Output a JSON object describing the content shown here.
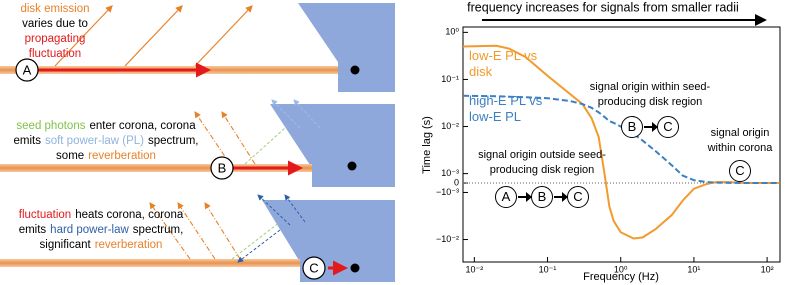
{
  "diagram": {
    "panels": [
      {
        "label": "A",
        "lines": [
          [
            {
              "t": "disk emission",
              "color": "#e8822a"
            }
          ],
          [
            {
              "t": "varies due to",
              "color": "#000000"
            }
          ],
          [
            {
              "t": "propagating",
              "color": "#e3191b"
            }
          ],
          [
            {
              "t": "fluctuation",
              "color": "#e3191b"
            }
          ]
        ]
      },
      {
        "label": "B",
        "lines": [
          [
            {
              "t": "seed photons",
              "color": "#7fc247"
            },
            {
              "t": "enter corona, corona",
              "color": "#000000"
            }
          ],
          [
            {
              "t": "emits",
              "color": "#000000"
            },
            {
              "t": "soft power-law (PL)",
              "color": "#8fb3e0"
            },
            {
              "t": "spectrum,",
              "color": "#000000"
            }
          ],
          [
            {
              "t": "some",
              "color": "#000000"
            },
            {
              "t": "reverberation",
              "color": "#e8822a"
            }
          ]
        ]
      },
      {
        "label": "C",
        "lines": [
          [
            {
              "t": "fluctuation",
              "color": "#e3191b"
            },
            {
              "t": "heats corona, corona",
              "color": "#000000"
            }
          ],
          [
            {
              "t": "emits",
              "color": "#000000"
            },
            {
              "t": "hard power-law",
              "color": "#2f5fa8"
            },
            {
              "t": "spectrum,",
              "color": "#000000"
            }
          ],
          [
            {
              "t": "significant",
              "color": "#000000"
            },
            {
              "t": "reverberation",
              "color": "#e8822a"
            }
          ]
        ]
      }
    ]
  },
  "chart_data": {
    "type": "line",
    "title": "frequency increases for signals from smaller radii",
    "xlabel": "Frequency (Hz)",
    "ylabel": "Time lag (s)",
    "xscale": "log",
    "yscale": "symlog",
    "linthresh": 0.001,
    "linscale": 0.2,
    "xlim": [
      0.007,
      150
    ],
    "ylim": [
      -0.03,
      1.3
    ],
    "xticks": [
      {
        "value": 0.01,
        "label": "10⁻²"
      },
      {
        "value": 0.1,
        "label": "10⁻¹"
      },
      {
        "value": 1,
        "label": "10⁰"
      },
      {
        "value": 10,
        "label": "10¹"
      },
      {
        "value": 100,
        "label": "10²"
      }
    ],
    "yticks": [
      {
        "value": 1,
        "label": "10⁰"
      },
      {
        "value": 0.1,
        "label": "10⁻¹"
      },
      {
        "value": 0.01,
        "label": "10⁻²"
      },
      {
        "value": 0.001,
        "label": "10⁻³"
      },
      0,
      {
        "value": -0.001,
        "label": "−10⁻³"
      },
      {
        "value": -0.01,
        "label": "−10⁻²"
      }
    ],
    "zero_line": true,
    "x": [
      0.007,
      0.02,
      0.03,
      0.05,
      0.1,
      0.2,
      0.3,
      0.4,
      0.5,
      0.6,
      0.7,
      0.8,
      1,
      1.5,
      2,
      3,
      5,
      7,
      10,
      15,
      20,
      30,
      50,
      100,
      150
    ],
    "series": [
      {
        "name": "low-E PL vs disk",
        "color": "#f39a2c",
        "dash": false,
        "values": [
          0.5,
          0.52,
          0.45,
          0.3,
          0.12,
          0.05,
          0.03,
          0.015,
          0.006,
          0.001,
          -0.002,
          -0.004,
          -0.007,
          -0.0095,
          -0.009,
          -0.006,
          -0.003,
          -0.0015,
          -0.0006,
          -0.0001,
          0.0001,
          0.0001,
          0,
          0,
          0
        ]
      },
      {
        "name": "high-E PL vs low-E PL",
        "color": "#3b80c2",
        "dash": true,
        "values": [
          0.045,
          0.044,
          0.043,
          0.042,
          0.04,
          0.035,
          0.03,
          0.025,
          0.02,
          0.016,
          0.013,
          0.012,
          0.01,
          0.007,
          0.005,
          0.003,
          0.0015,
          0.0008,
          0.0003,
          0.0001,
          5e-05,
          2e-05,
          0,
          0,
          0
        ]
      }
    ],
    "annotations": [
      {
        "text": "signal origin within seed-producing disk region",
        "letters": [
          "B",
          "C"
        ]
      },
      {
        "text": "signal origin within corona",
        "letters": [
          "C"
        ]
      },
      {
        "text": "signal origin outside seed-producing disk region",
        "letters": [
          "A",
          "B",
          "C"
        ]
      }
    ]
  }
}
